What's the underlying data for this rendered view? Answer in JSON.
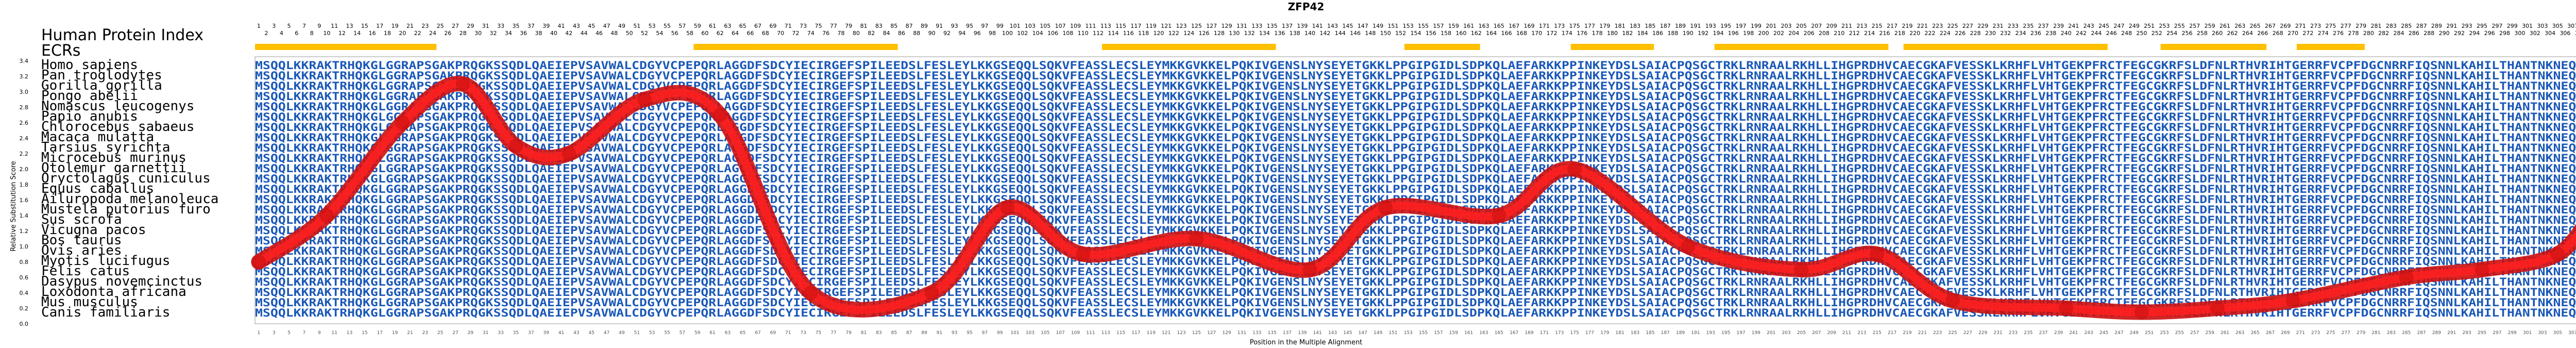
{
  "chart_data": {
    "type": "line",
    "title": "ZFP42",
    "index_label": "Human Protein Index",
    "ecr_label": "ECRs",
    "xlabel": "Position in the Multiple Alignment",
    "ylabel": "Relative Substitution Score",
    "ylim": [
      0,
      3.4
    ],
    "yticks": [
      "0.0",
      "0.2",
      "0.4",
      "0.6",
      "0.8",
      "1.0",
      "1.2",
      "1.4",
      "1.6",
      "1.8",
      "2.0",
      "2.2",
      "2.4",
      "2.6",
      "2.8",
      "3.0",
      "3.2",
      "3.4"
    ],
    "position_range": [
      1,
      310
    ],
    "species": [
      "Homo sapiens",
      "Pan troglodytes",
      "Gorilla gorilla",
      "Pongo abelii",
      "Nomascus leucogenys",
      "Papio anubis",
      "Chlorocebus sabaeus",
      "Macaca mulatta",
      "Tarsius syrichta",
      "Microcebus murinus",
      "Otolemur garnettii",
      "Oryctolagus cuniculus",
      "Equus caballus",
      "Ailuropoda melanoleuca",
      "Mustela putorius furo",
      "Sus scrofa",
      "Vicugna pacos",
      "Bos taurus",
      "Ovis aries",
      "Myotis lucifugus",
      "Felis catus",
      "Dasypus novemcinctus",
      "Loxodonta africana",
      "Mus musculus",
      "Canis familiaris"
    ],
    "sequences": [
      "MSQQLKKRAKTRHQKGLGGRAPSGAKPRQGKSSQDLQAEIEPVSAVWALCDGYVCPEPQRLAGGDFSDCYIECIRGEFSPILEEDSLFESLEYLKKGSEQQLSQKVFEASSLECSLEYMKKGVKKELPQKIVGENSLNYSEYETGKKLPPGIPGIDLSDPKQLAEFARKKPPINKEYDSLSAIACPQSGCTRKLRNRAALRKHLLIHGPRDHVCAECGKAFVESSKLKRHFLVHTGEKPFRCTFEGCGKRFSLDFNLRTHVRIHTGERRFVCPFDGCNRRFIQSNNLKAHILTHANTNKNEQEGK",
      "MSQQLKKRAKTRHQKGLGGRAPSGAKPRQGKSSQDLQAEIEPVSAVWALCDGYVCPEPQRLAGGDFSDCYIECIRGEFSPILEEDSLFESLEYLKKGSEQQLSQKVFEASSLECSLEYMKKGVKKELPQKIVGENSLNYSEYETGKKLPPGIPGIDLSDPKQLAEFARKKPPINKEYDSLSAIACPQSGCTRKLRNRAALRKHLLIHGPRDHVCAECGKAFVESSKLKRHFLVHTGEKPFRCTFEGCGKRFSLDFNLRTHVRIHTGERRFVCPFDGCNRRFIQSNNLKAHILTHANTNKNEQEGK",
      "MSQQLKKRAKTRHQKGLGGRAPSGAKPRQGKSSQDLQAEIEPVSAVWALCDGYVCPEPQRLAGGDFSDCYIECIRGEFSPILEEDSLFESLEYLKKGSEQQLSQKVFEASSLECSLEYMKKGVKKELPQKIVGENSLNYSEYETGKKLPPGIPGIDLSDPKQLAEFARKKPPINKEYDSLSAIACPQSGCTRKLRNRAALRKHLLIHGPRDHVCAECGKAFVESSKLKRHFLVHTGEKPFRCTFEGCGKRFSLDFNLRTHVRIHTGERRFVCPFDGCNRRFIQSNNLKAHILTHANTNKNEQEGK",
      "MSQQLKKRAKTRHQKGLGGRAPSGAKPRQGKSSQDLQAEIEPVSAVWALCDGYVCPEPQRLAGGDFSDCYIECIRGEFSPILEEDSLFESLEYLKKGSEQQLSQKVFEASSLECSLEYMKKGVKKELPQKIVGENSLNYSEYETGKKLPPGIPGIDLSDPKQLAEFARKKPPINKEYDSLSAIACPQSGCTRKLRNRAALRKHLLIHGPRDHVCAECGKAFVESSKLKRHFLVHTGEKPFRCTFEGCGKRFSLDFNLRTHVRIHTGERRFVCPFDGCNRRFIQSNNLKAHILTHANTNKNEQEGK",
      "MSQQLKKRAKTRHQKGLGGRAPSGAKPRQGKSSQDLQAEIEPVSAVWALCDGYVCPEPQRLAGGDFSDCYIECIRGEFSPILEEDSLFESLEYLKKGSEQQLSQKVFEASSLECSLEYMKKGVKKELPQKIVGENSLNYSEYETGKKLPPGIPGIDLSDPKQLAEFARKKPPINKEYDSLSAIACPQSGCTRKLRNRAALRKHLLIHGPRDHVCAECGKAFVESSKLKRHFLVHTGEKPFRCTFEGCGKRFSLDFNLRTHVRIHTGERRFVCPFDGCNRRFIQSNNLKAHILTHANTNKNEQEGK",
      "MSQQLKKRAKTRHQKGLGGRAPSGAKPRQGKSSQDLQAEIEPVSAVWALCDGYVCPEPQRLAGGDFSDCYIECIRGEFSPILEEDSLFESLEYLKKGSEQQLSQKVFEASSLECSLEYMKKGVKKELPQKIVGENSLNYSEYETGKKLPPGIPGIDLSDPKQLAEFARKKPPINKEYDSLSAIACPQSGCTRKLRNRAALRKHLLIHGPRDHVCAECGKAFVESSKLKRHFLVHTGEKPFRCTFEGCGKRFSLDFNLRTHVRIHTGERRFVCPFDGCNRRFIQSNNLKAHILTHANTNKNEQEGK",
      "MSQQLKKRAKTRHQKGLGGRAPSGAKPRQGKSSQDLQAEIEPVSAVWALCDGYVCPEPQRLAGGDFSDCYIECIRGEFSPILEEDSLFESLEYLKKGSEQQLSQKVFEASSLECSLEYMKKGVKKELPQKIVGENSLNYSEYETGKKLPPGIPGIDLSDPKQLAEFARKKPPINKEYDSLSAIACPQSGCTRKLRNRAALRKHLLIHGPRDHVCAECGKAFVESSKLKRHFLVHTGEKPFRCTFEGCGKRFSLDFNLRTHVRIHTGERRFVCPFDGCNRRFIQSNNLKAHILTHANTNKNEQEGK",
      "MSQQLKKRAKTRHQKGLGGRAPSGAKPRQGKSSQDLQAEIEPVSAVWALCDGYVCPEPQRLAGGDFSDCYIECIRGEFSPILEEDSLFESLEYLKKGSEQQLSQKVFEASSLECSLEYMKKGVKKELPQKIVGENSLNYSEYETGKKLPPGIPGIDLSDPKQLAEFARKKPPINKEYDSLSAIACPQSGCTRKLRNRAALRKHLLIHGPRDHVCAECGKAFVESSKLKRHFLVHTGEKPFRCTFEGCGKRFSLDFNLRTHVRIHTGERRFVCPFDGCNRRFIQSNNLKAHILTHANTNKNEQEGK",
      "MSQQLKKRAKTRHQKGLGGRAPSGAKPRQGKSSQDLQAEIEPVSAVWALCDGYVCPEPQRLAGGDFSDCYIECIRGEFSPILEEDSLFESLEYLKKGSEQQLSQKVFEASSLECSLEYMKKGVKKELPQKIVGENSLNYSEYETGKKLPPGIPGIDLSDPKQLAEFARKKPPINKEYDSLSAIACPQSGCTRKLRNRAALRKHLLIHGPRDHVCAECGKAFVESSKLKRHFLVHTGEKPFRCTFEGCGKRFSLDFNLRTHVRIHTGERRFVCPFDGCNRRFIQSNNLKAHILTHANTNKNEQEGK",
      "MSQQLKKRAKTRHQKGLGGRAPSGAKPRQGKSSQDLQAEIEPVSAVWALCDGYVCPEPQRLAGGDFSDCYIECIRGEFSPILEEDSLFESLEYLKKGSEQQLSQKVFEASSLECSLEYMKKGVKKELPQKIVGENSLNYSEYETGKKLPPGIPGIDLSDPKQLAEFARKKPPINKEYDSLSAIACPQSGCTRKLRNRAALRKHLLIHGPRDHVCAECGKAFVESSKLKRHFLVHTGEKPFRCTFEGCGKRFSLDFNLRTHVRIHTGERRFVCPFDGCNRRFIQSNNLKAHILTHANTNKNEQEGK",
      "MSQQLKKRAKTRHQKGLGGRAPSGAKPRQGKSSQDLQAEIEPVSAVWALCDGYVCPEPQRLAGGDFSDCYIECIRGEFSPILEEDSLFESLEYLKKGSEQQLSQKVFEASSLECSLEYMKKGVKKELPQKIVGENSLNYSEYETGKKLPPGIPGIDLSDPKQLAEFARKKPPINKEYDSLSAIACPQSGCTRKLRNRAALRKHLLIHGPRDHVCAECGKAFVESSKLKRHFLVHTGEKPFRCTFEGCGKRFSLDFNLRTHVRIHTGERRFVCPFDGCNRRFIQSNNLKAHILTHANTNKNEQEGK",
      "MSQQLKKRAKTRHQKGLGGRAPSGAKPRQGKSSQDLQAEIEPVSAVWALCDGYVCPEPQRLAGGDFSDCYIECIRGEFSPILEEDSLFESLEYLKKGSEQQLSQKVFEASSLECSLEYMKKGVKKELPQKIVGENSLNYSEYETGKKLPPGIPGIDLSDPKQLAEFARKKPPINKEYDSLSAIACPQSGCTRKLRNRAALRKHLLIHGPRDHVCAECGKAFVESSKLKRHFLVHTGEKPFRCTFEGCGKRFSLDFNLRTHVRIHTGERRFVCPFDGCNRRFIQSNNLKAHILTHANTNKNEQEGK",
      "MSQQLKKRAKTRHQKGLGGRAPSGAKPRQGKSSQDLQAEIEPVSAVWALCDGYVCPEPQRLAGGDFSDCYIECIRGEFSPILEEDSLFESLEYLKKGSEQQLSQKVFEASSLECSLEYMKKGVKKELPQKIVGENSLNYSEYETGKKLPPGIPGIDLSDPKQLAEFARKKPPINKEYDSLSAIACPQSGCTRKLRNRAALRKHLLIHGPRDHVCAECGKAFVESSKLKRHFLVHTGEKPFRCTFEGCGKRFSLDFNLRTHVRIHTGERRFVCPFDGCNRRFIQSNNLKAHILTHANTNKNEQEGK",
      "MSQQLKKRAKTRHQKGLGGRAPSGAKPRQGKSSQDLQAEIEPVSAVWALCDGYVCPEPQRLAGGDFSDCYIECIRGEFSPILEEDSLFESLEYLKKGSEQQLSQKVFEASSLECSLEYMKKGVKKELPQKIVGENSLNYSEYETGKKLPPGIPGIDLSDPKQLAEFARKKPPINKEYDSLSAIACPQSGCTRKLRNRAALRKHLLIHGPRDHVCAECGKAFVESSKLKRHFLVHTGEKPFRCTFEGCGKRFSLDFNLRTHVRIHTGERRFVCPFDGCNRRFIQSNNLKAHILTHANTNKNEQEGK",
      "MSQQLKKRAKTRHQKGLGGRAPSGAKPRQGKSSQDLQAEIEPVSAVWALCDGYVCPEPQRLAGGDFSDCYIECIRGEFSPILEEDSLFESLEYLKKGSEQQLSQKVFEASSLECSLEYMKKGVKKELPQKIVGENSLNYSEYETGKKLPPGIPGIDLSDPKQLAEFARKKPPINKEYDSLSAIACPQSGCTRKLRNRAALRKHLLIHGPRDHVCAECGKAFVESSKLKRHFLVHTGEKPFRCTFEGCGKRFSLDFNLRTHVRIHTGERRFVCPFDGCNRRFIQSNNLKAHILTHANTNKNEQEGK",
      "MSQQLKKRAKTRHQKGLGGRAPSGAKPRQGKSSQDLQAEIEPVSAVWALCDGYVCPEPQRLAGGDFSDCYIECIRGEFSPILEEDSLFESLEYLKKGSEQQLSQKVFEASSLECSLEYMKKGVKKELPQKIVGENSLNYSEYETGKKLPPGIPGIDLSDPKQLAEFARKKPPINKEYDSLSAIACPQSGCTRKLRNRAALRKHLLIHGPRDHVCAECGKAFVESSKLKRHFLVHTGEKPFRCTFEGCGKRFSLDFNLRTHVRIHTGERRFVCPFDGCNRRFIQSNNLKAHILTHANTNKNEQEGK",
      "MSQQLKKRAKTRHQKGLGGRAPSGAKPRQGKSSQDLQAEIEPVSAVWALCDGYVCPEPQRLAGGDFSDCYIECIRGEFSPILEEDSLFESLEYLKKGSEQQLSQKVFEASSLECSLEYMKKGVKKELPQKIVGENSLNYSEYETGKKLPPGIPGIDLSDPKQLAEFARKKPPINKEYDSLSAIACPQSGCTRKLRNRAALRKHLLIHGPRDHVCAECGKAFVESSKLKRHFLVHTGEKPFRCTFEGCGKRFSLDFNLRTHVRIHTGERRFVCPFDGCNRRFIQSNNLKAHILTHANTNKNEQEGK",
      "MSQQLKKRAKTRHQKGLGGRAPSGAKPRQGKSSQDLQAEIEPVSAVWALCDGYVCPEPQRLAGGDFSDCYIECIRGEFSPILEEDSLFESLEYLKKGSEQQLSQKVFEASSLECSLEYMKKGVKKELPQKIVGENSLNYSEYETGKKLPPGIPGIDLSDPKQLAEFARKKPPINKEYDSLSAIACPQSGCTRKLRNRAALRKHLLIHGPRDHVCAECGKAFVESSKLKRHFLVHTGEKPFRCTFEGCGKRFSLDFNLRTHVRIHTGERRFVCPFDGCNRRFIQSNNLKAHILTHANTNKNEQEGK",
      "MSQQLKKRAKTRHQKGLGGRAPSGAKPRQGKSSQDLQAEIEPVSAVWALCDGYVCPEPQRLAGGDFSDCYIECIRGEFSPILEEDSLFESLEYLKKGSEQQLSQKVFEASSLECSLEYMKKGVKKELPQKIVGENSLNYSEYETGKKLPPGIPGIDLSDPKQLAEFARKKPPINKEYDSLSAIACPQSGCTRKLRNRAALRKHLLIHGPRDHVCAECGKAFVESSKLKRHFLVHTGEKPFRCTFEGCGKRFSLDFNLRTHVRIHTGERRFVCPFDGCNRRFIQSNNLKAHILTHANTNKNEQEGK",
      "MSQQLKKRAKTRHQKGLGGRAPSGAKPRQGKSSQDLQAEIEPVSAVWALCDGYVCPEPQRLAGGDFSDCYIECIRGEFSPILEEDSLFESLEYLKKGSEQQLSQKVFEASSLECSLEYMKKGVKKELPQKIVGENSLNYSEYETGKKLPPGIPGIDLSDPKQLAEFARKKPPINKEYDSLSAIACPQSGCTRKLRNRAALRKHLLIHGPRDHVCAECGKAFVESSKLKRHFLVHTGEKPFRCTFEGCGKRFSLDFNLRTHVRIHTGERRFVCPFDGCNRRFIQSNNLKAHILTHANTNKNEQEGK",
      "MSQQLKKRAKTRHQKGLGGRAPSGAKPRQGKSSQDLQAEIEPVSAVWALCDGYVCPEPQRLAGGDFSDCYIECIRGEFSPILEEDSLFESLEYLKKGSEQQLSQKVFEASSLECSLEYMKKGVKKELPQKIVGENSLNYSEYETGKKLPPGIPGIDLSDPKQLAEFARKKPPINKEYDSLSAIACPQSGCTRKLRNRAALRKHLLIHGPRDHVCAECGKAFVESSKLKRHFLVHTGEKPFRCTFEGCGKRFSLDFNLRTHVRIHTGERRFVCPFDGCNRRFIQSNNLKAHILTHANTNKNEQEGK",
      "MSQQLKKRAKTRHQKGLGGRAPSGAKPRQGKSSQDLQAEIEPVSAVWALCDGYVCPEPQRLAGGDFSDCYIECIRGEFSPILEEDSLFESLEYLKKGSEQQLSQKVFEASSLECSLEYMKKGVKKELPQKIVGENSLNYSEYETGKKLPPGIPGIDLSDPKQLAEFARKKPPINKEYDSLSAIACPQSGCTRKLRNRAALRKHLLIHGPRDHVCAECGKAFVESSKLKRHFLVHTGEKPFRCTFEGCGKRFSLDFNLRTHVRIHTGERRFVCPFDGCNRRFIQSNNLKAHILTHANTNKNEQEGK",
      "MSQQLKKRAKTRHQKGLGGRAPSGAKPRQGKSSQDLQAEIEPVSAVWALCDGYVCPEPQRLAGGDFSDCYIECIRGEFSPILEEDSLFESLEYLKKGSEQQLSQKVFEASSLECSLEYMKKGVKKELPQKIVGENSLNYSEYETGKKLPPGIPGIDLSDPKQLAEFARKKPPINKEYDSLSAIACPQSGCTRKLRNRAALRKHLLIHGPRDHVCAECGKAFVESSKLKRHFLVHTGEKPFRCTFEGCGKRFSLDFNLRTHVRIHTGERRFVCPFDGCNRRFIQSNNLKAHILTHANTNKNEQEGK",
      "MSQQLKKRAKTRHQKGLGGRAPSGAKPRQGKSSQDLQAEIEPVSAVWALCDGYVCPEPQRLAGGDFSDCYIECIRGEFSPILEEDSLFESLEYLKKGSEQQLSQKVFEASSLECSLEYMKKGVKKELPQKIVGENSLNYSEYETGKKLPPGIPGIDLSDPKQLAEFARKKPPINKEYDSLSAIACPQSGCTRKLRNRAALRKHLLIHGPRDHVCAECGKAFVESSKLKRHFLVHTGEKPFRCTFEGCGKRFSLDFNLRTHVRIHTGERRFVCPFDGCNRRFIQSNNLKAHILTHANTNKNEQEGK",
      "MSQQLKKRAKTRHQKGLGGRAPSGAKPRQGKSSQDLQAEIEPVSAVWALCDGYVCPEPQRLAGGDFSDCYIECIRGEFSPILEEDSLFESLEYLKKGSEQQLSQKVFEASSLECSLEYMKKGVKKELPQKIVGENSLNYSEYETGKKLPPGIPGIDLSDPKQLAEFARKKPPINKEYDSLSAIACPQSGCTRKLRNRAALRKHLLIHGPRDHVCAECGKAFVESSKLKRHFLVHTGEKPFRCTFEGCGKRFSLDFNLRTHVRIHTGERRFVCPFDGCNRRFIQSNNLKAHILTHANTNKNEQEGK"
    ],
    "ecr_regions": [
      [
        1,
        24
      ],
      [
        59,
        66
      ],
      [
        67,
        85
      ],
      [
        113,
        135
      ],
      [
        153,
        162
      ],
      [
        175,
        185
      ],
      [
        194,
        216
      ],
      [
        219,
        245
      ],
      [
        253,
        266
      ],
      [
        271,
        279
      ]
    ],
    "curve": {
      "x": [
        1,
        10,
        20,
        28,
        35,
        42,
        52,
        62,
        74,
        90,
        100,
        110,
        125,
        140,
        150,
        165,
        175,
        190,
        205,
        215,
        225,
        240,
        250,
        260,
        270,
        285,
        295,
        305,
        310
      ],
      "y": [
        0.8,
        1.4,
        2.6,
        3.1,
        2.3,
        2.2,
        2.9,
        2.7,
        0.4,
        0.4,
        1.5,
        0.9,
        1.1,
        0.7,
        1.5,
        1.4,
        2.0,
        1.0,
        0.7,
        0.9,
        0.3,
        0.2,
        0.15,
        0.2,
        0.3,
        0.6,
        0.7,
        0.9,
        1.5
      ]
    },
    "colors": {
      "curve_outer": "#cc1010",
      "curve_inner": "#ff2020",
      "ecr": "#ffc000",
      "sequence": "#1a58b8",
      "background": "#ffffff"
    }
  }
}
